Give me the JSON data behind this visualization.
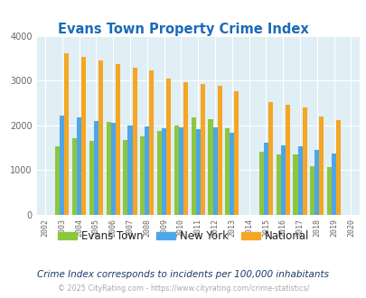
{
  "title": "Evans Town Property Crime Index",
  "subtitle": "Crime Index corresponds to incidents per 100,000 inhabitants",
  "footer": "© 2025 CityRating.com - https://www.cityrating.com/crime-statistics/",
  "years": [
    2002,
    2003,
    2004,
    2005,
    2006,
    2007,
    2008,
    2009,
    2010,
    2011,
    2012,
    2013,
    2014,
    2015,
    2016,
    2017,
    2018,
    2019,
    2020
  ],
  "evans_town": [
    null,
    1520,
    1700,
    1650,
    2080,
    1660,
    1740,
    1880,
    2000,
    2180,
    2130,
    1940,
    null,
    1400,
    1340,
    1340,
    1090,
    1060,
    null
  ],
  "new_york": [
    null,
    2220,
    2180,
    2100,
    2050,
    1990,
    1980,
    1940,
    1950,
    1920,
    1950,
    1830,
    null,
    1600,
    1550,
    1530,
    1450,
    1370,
    null
  ],
  "national": [
    null,
    3600,
    3520,
    3440,
    3360,
    3290,
    3230,
    3040,
    2960,
    2920,
    2880,
    2750,
    null,
    2510,
    2460,
    2390,
    2190,
    2110,
    null
  ],
  "evans_color": "#8dc63f",
  "newyork_color": "#4da6e8",
  "national_color": "#f5a623",
  "bg_color": "#e0eef5",
  "title_color": "#1a6bba",
  "subtitle_color": "#1a3a6b",
  "footer_color": "#aaaaaa",
  "ylim": [
    0,
    4000
  ],
  "yticks": [
    0,
    1000,
    2000,
    3000,
    4000
  ],
  "grid_color": "#ffffff",
  "bar_width": 0.27
}
